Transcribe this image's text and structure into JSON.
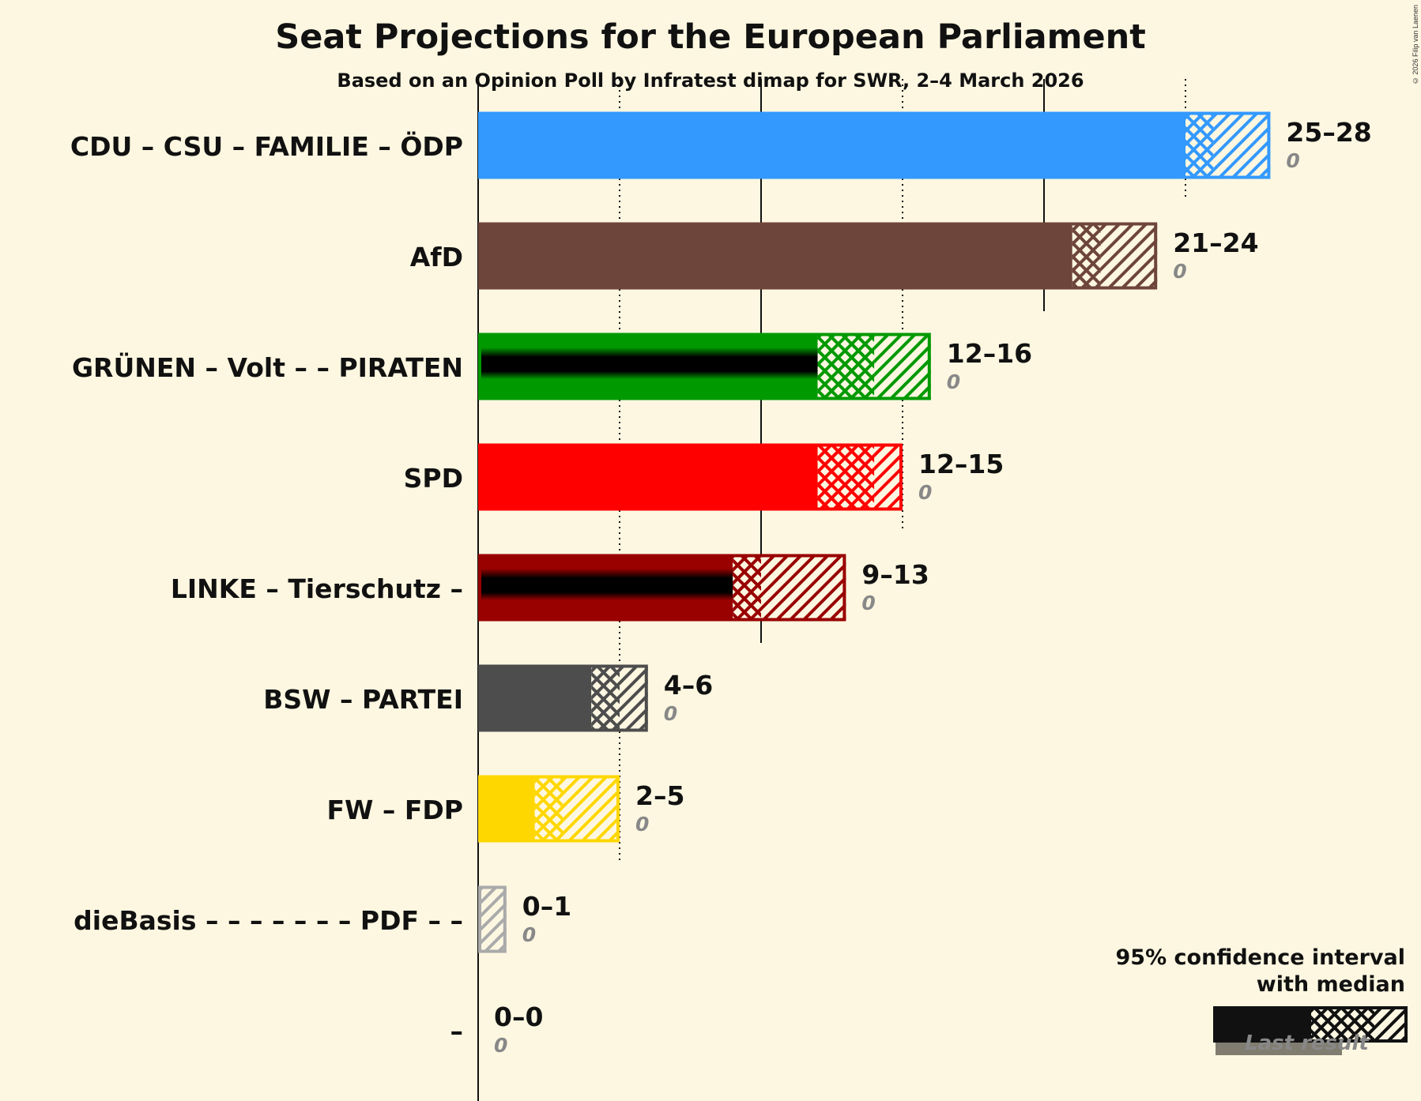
{
  "title": "Seat Projections for the European Parliament",
  "subtitle": "Based on an Opinion Poll by Infratest dimap for SWR, 2–4 March 2026",
  "copyright": "© 2026 Filip van Laenen",
  "legend": {
    "title_line1": "95% confidence interval",
    "title_line2": "with median",
    "last_result": "Last result"
  },
  "chart_data": {
    "type": "bar",
    "orientation": "horizontal",
    "title": "Seat Projections for the European Parliament",
    "xlim": [
      0,
      28
    ],
    "gridlines_solid": [
      0,
      10,
      20
    ],
    "gridlines_dotted": [
      5,
      15,
      25
    ],
    "series": [
      {
        "name": "CDU – CSU – FAMILIE – ÖDP",
        "low": 25,
        "median": 26,
        "high": 28,
        "range_label": "25–28",
        "last_result": 0,
        "last_label": "0",
        "color": "#3399ff",
        "overlay": false
      },
      {
        "name": "AfD",
        "low": 21,
        "median": 22,
        "high": 24,
        "range_label": "21–24",
        "last_result": 0,
        "last_label": "0",
        "color": "#6e453a",
        "overlay": false
      },
      {
        "name": "GRÜNEN – Volt – – PIRATEN",
        "low": 12,
        "median": 14,
        "high": 16,
        "range_label": "12–16",
        "last_result": 0,
        "last_label": "0",
        "color": "#009900",
        "overlay": true
      },
      {
        "name": "SPD",
        "low": 12,
        "median": 14,
        "high": 15,
        "range_label": "12–15",
        "last_result": 0,
        "last_label": "0",
        "color": "#ff0000",
        "overlay": false
      },
      {
        "name": "LINKE – Tierschutz –",
        "low": 9,
        "median": 10,
        "high": 13,
        "range_label": "9–13",
        "last_result": 0,
        "last_label": "0",
        "color": "#990000",
        "overlay": true
      },
      {
        "name": "BSW – PARTEI",
        "low": 4,
        "median": 5,
        "high": 6,
        "range_label": "4–6",
        "last_result": 0,
        "last_label": "0",
        "color": "#4d4d4d",
        "overlay": false
      },
      {
        "name": "FW – FDP",
        "low": 2,
        "median": 3,
        "high": 5,
        "range_label": "2–5",
        "last_result": 0,
        "last_label": "0",
        "color": "#ffd700",
        "overlay": false
      },
      {
        "name": "dieBasis – – – – – – – PDF – –",
        "low": 0,
        "median": 0,
        "high": 1,
        "range_label": "0–1",
        "last_result": 0,
        "last_label": "0",
        "color": "#aaaaaa",
        "overlay": false
      },
      {
        "name": "–",
        "low": 0,
        "median": 0,
        "high": 0,
        "range_label": "0–0",
        "last_result": 0,
        "last_label": "0",
        "color": "#aaaaaa",
        "overlay": false
      }
    ]
  }
}
